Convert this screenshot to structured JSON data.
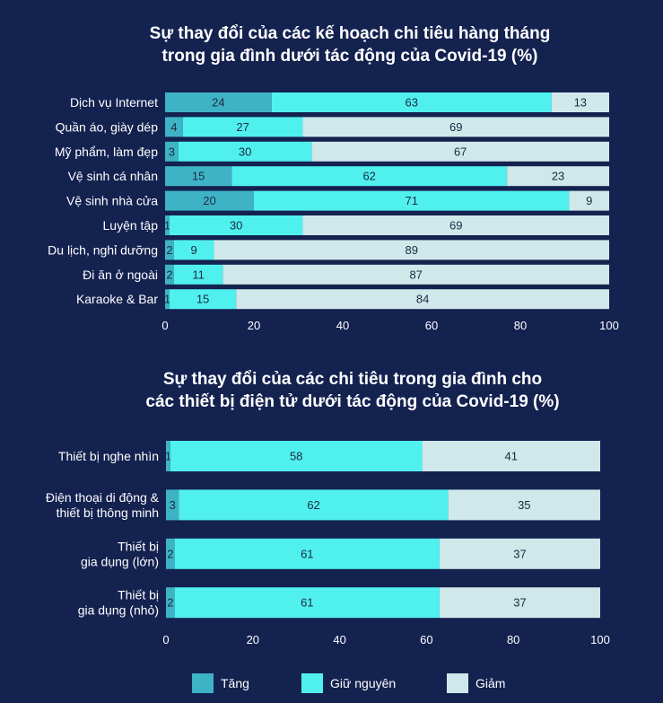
{
  "colors": {
    "background": "#142250",
    "tang": "#3FB3C6",
    "giu_nguyen": "#50F0EE",
    "giam": "#CFE8EA",
    "text": "#ffffff",
    "bar_text": "#1a2a40"
  },
  "legend": [
    {
      "label": "Tăng",
      "color": "#3FB3C6"
    },
    {
      "label": "Giữ nguyên",
      "color": "#50F0EE"
    },
    {
      "label": "Giảm",
      "color": "#CFE8EA"
    }
  ],
  "chart_data": [
    {
      "type": "bar",
      "orientation": "horizontal-stacked",
      "title_lines": [
        "Sự thay đổi của các kế hoạch chi tiêu hàng tháng",
        "trong gia đình dưới tác động của Covid-19 (%)"
      ],
      "categories": [
        "Dịch vụ Internet",
        "Quần áo, giày dép",
        "Mỹ phẩm, làm đẹp",
        "Vệ sinh cá nhân",
        "Vệ sinh nhà cửa",
        "Luyện tập",
        "Du lịch, nghỉ dưỡng",
        "Đi ăn ở ngoài",
        "Karaoke & Bar"
      ],
      "series": [
        {
          "name": "Tăng",
          "values": [
            24,
            4,
            3,
            15,
            20,
            1,
            2,
            2,
            1
          ]
        },
        {
          "name": "Giữ nguyên",
          "values": [
            63,
            27,
            30,
            62,
            71,
            30,
            9,
            11,
            15
          ]
        },
        {
          "name": "Giảm",
          "values": [
            13,
            69,
            67,
            23,
            9,
            69,
            89,
            87,
            84
          ]
        }
      ],
      "xticks": [
        0,
        20,
        40,
        60,
        80,
        100
      ],
      "xlim": [
        0,
        100
      ]
    },
    {
      "type": "bar",
      "orientation": "horizontal-stacked",
      "title_lines": [
        "Sự thay đổi của các chi tiêu trong gia đình cho",
        "các thiết bị điện tử dưới tác động của Covid-19 (%)"
      ],
      "categories": [
        [
          "Thiết bị nghe nhìn"
        ],
        [
          "Điện thoại di động &",
          "thiết bị thông minh"
        ],
        [
          "Thiết bị",
          "gia dụng (lớn)"
        ],
        [
          "Thiết bị",
          "gia dụng (nhỏ)"
        ]
      ],
      "series": [
        {
          "name": "Tăng",
          "values": [
            1,
            3,
            2,
            2
          ]
        },
        {
          "name": "Giữ nguyên",
          "values": [
            58,
            62,
            61,
            61
          ]
        },
        {
          "name": "Giảm",
          "values": [
            41,
            35,
            37,
            37
          ]
        }
      ],
      "xticks": [
        0,
        20,
        40,
        60,
        80,
        100
      ],
      "xlim": [
        0,
        100
      ]
    }
  ]
}
